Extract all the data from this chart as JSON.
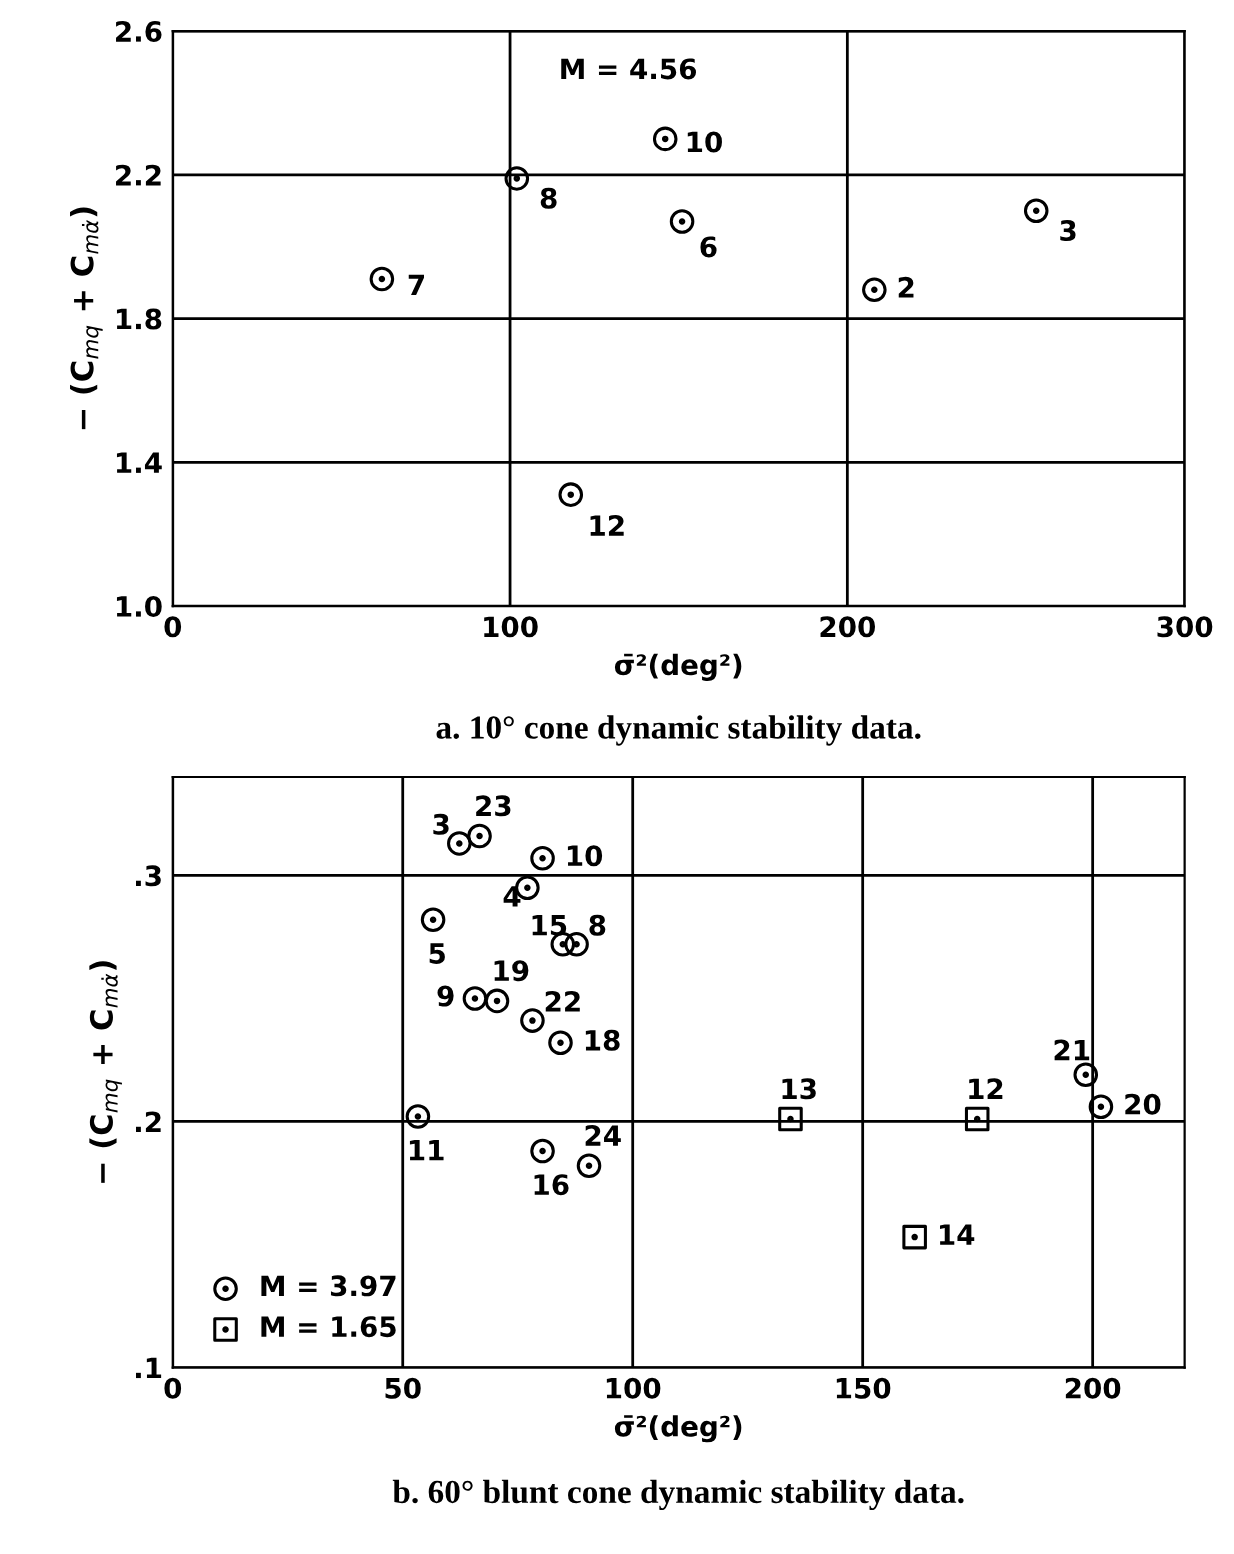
{
  "chart_data": [
    {
      "type": "scatter",
      "title": "a. 10° cone dynamic stability data.",
      "xlabel": "σ̄²(deg²)",
      "ylabel": "− (C$_{mq}$ + C$_{mα̇}$)",
      "series": [
        {
          "color": "#000000",
          "marker": "circle",
          "x": [
            146,
            102,
            151,
            256,
            208,
            62,
            118
          ],
          "values": [
            2.3,
            2.19,
            2.07,
            2.1,
            1.88,
            1.91,
            1.31
          ]
        }
      ],
      "annotations": [
        "M = 4.56",
        {
          "text": "10",
          "x": 146,
          "y": 2.3
        },
        {
          "text": "8",
          "x": 102,
          "y": 2.19
        },
        {
          "text": "6",
          "x": 151,
          "y": 2.07
        },
        {
          "text": "3",
          "x": 256,
          "y": 2.1
        },
        {
          "text": "2",
          "x": 208,
          "y": 1.88
        },
        {
          "text": "7",
          "x": 62,
          "y": 1.91
        },
        {
          "text": "12",
          "x": 118,
          "y": 1.31
        }
      ],
      "xlim": [
        0,
        300
      ],
      "xticks": [
        0,
        100,
        200,
        300
      ],
      "ylim": [
        1.0,
        2.6
      ],
      "yticks": [
        {
          "value": 1.0,
          "label": "1.0"
        },
        1.4,
        1.8,
        2.2,
        2.6
      ],
      "grid": true,
      "legend": false
    },
    {
      "type": "scatter",
      "title": "b. 60° blunt cone dynamic stability data.",
      "xlabel": "σ̄²(deg²)",
      "ylabel": "− (C$_{mq}$ + C$_{mα̇}$)",
      "series": [
        {
          "name": "M = 3.97",
          "color": "#000000",
          "marker": "circle",
          "x": [
            62.3,
            66.7,
            80.4,
            77.1,
            56.6,
            84.8,
            87.8,
            70.5,
            65.7,
            78.2,
            84.3,
            53.3,
            80.4,
            90.5,
            198.5,
            201.8
          ],
          "values": [
            0.313,
            0.316,
            0.307,
            0.295,
            0.282,
            0.272,
            0.272,
            0.249,
            0.25,
            0.241,
            0.232,
            0.202,
            0.188,
            0.182,
            0.219,
            0.206
          ]
        },
        {
          "name": "M = 1.65",
          "color": "#000000",
          "marker": "square",
          "x": [
            134.3,
            174.9,
            161.3
          ],
          "values": [
            0.201,
            0.201,
            0.153
          ]
        }
      ],
      "annotations": [
        {
          "text": "3",
          "x": 62.3,
          "y": 0.313
        },
        {
          "text": "23",
          "x": 66.7,
          "y": 0.316
        },
        {
          "text": "10",
          "x": 80.4,
          "y": 0.307
        },
        {
          "text": "4",
          "x": 77.1,
          "y": 0.295
        },
        {
          "text": "5",
          "x": 56.6,
          "y": 0.282
        },
        {
          "text": "15",
          "x": 84.8,
          "y": 0.272
        },
        {
          "text": "8",
          "x": 87.8,
          "y": 0.272
        },
        {
          "text": "19",
          "x": 70.5,
          "y": 0.249
        },
        {
          "text": "9",
          "x": 65.7,
          "y": 0.25
        },
        {
          "text": "22",
          "x": 78.2,
          "y": 0.241
        },
        {
          "text": "18",
          "x": 84.3,
          "y": 0.232
        },
        {
          "text": "11",
          "x": 53.3,
          "y": 0.202
        },
        {
          "text": "16",
          "x": 80.4,
          "y": 0.188
        },
        {
          "text": "24",
          "x": 90.5,
          "y": 0.182
        },
        {
          "text": "21",
          "x": 198.5,
          "y": 0.219
        },
        {
          "text": "20",
          "x": 201.8,
          "y": 0.206
        },
        {
          "text": "13",
          "x": 134.3,
          "y": 0.201
        },
        {
          "text": "12",
          "x": 174.9,
          "y": 0.201
        },
        {
          "text": "14",
          "x": 161.3,
          "y": 0.153
        }
      ],
      "xlim": [
        0,
        220
      ],
      "xticks": [
        0,
        50,
        100,
        150,
        200
      ],
      "ylim": [
        0.1,
        0.34
      ],
      "yticks": [
        {
          "value": 0.1,
          "label": ".1"
        },
        {
          "value": 0.2,
          "label": ".2"
        },
        {
          "value": 0.3,
          "label": ".3"
        }
      ],
      "grid": true,
      "legend": "bottom left"
    }
  ]
}
